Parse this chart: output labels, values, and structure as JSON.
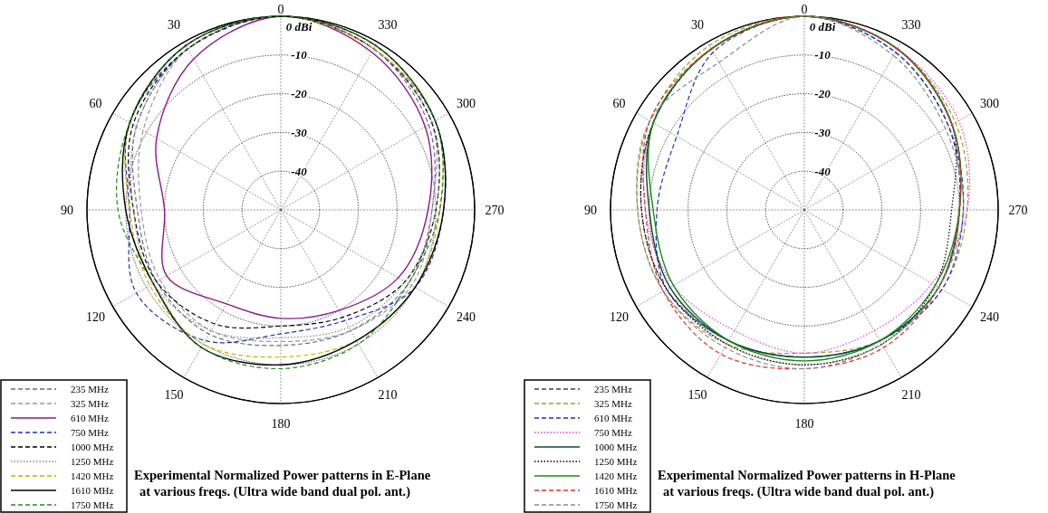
{
  "chart_data": [
    {
      "type": "radar",
      "annotations": [
        "Experimental Normalized Power patterns in E-Plane",
        "at various freqs. (Ultra wide band dual pol. ant.)"
      ],
      "categories": [
        "0",
        "330",
        "300",
        "270",
        "240",
        "210",
        "180",
        "150",
        "120",
        "90",
        "60",
        "30"
      ],
      "ylim": [
        -50,
        0
      ],
      "yticks": [
        {
          "value": 0,
          "label": "0 dBi"
        },
        {
          "value": -10,
          "label": "-10"
        },
        {
          "value": -20,
          "label": "-20"
        },
        {
          "value": -30,
          "label": "-30"
        },
        {
          "value": -40,
          "label": "-40"
        }
      ],
      "grid": true,
      "legend": "bottom left",
      "series": [
        {
          "name": "235 MHz",
          "color": "#6a6a8a",
          "line_style": "dashed",
          "values": [
            0,
            -2,
            -6,
            -11,
            -12,
            -14,
            -15,
            -13,
            -13,
            -13,
            -7,
            -2
          ]
        },
        {
          "name": "325 MHz",
          "color": "#999999",
          "line_style": "dashed",
          "values": [
            0,
            -2,
            -5,
            -11,
            -11,
            -14,
            -16,
            -14,
            -14,
            -14,
            -9,
            -2
          ]
        },
        {
          "name": "610 MHz",
          "color": "#8b1a8b",
          "line_style": "solid",
          "values": [
            0,
            -3,
            -7,
            -12,
            -15,
            -20,
            -22,
            -22,
            -16,
            -20,
            -13,
            -5
          ]
        },
        {
          "name": "750 MHz",
          "color": "#2030c0",
          "line_style": "dashed",
          "values": [
            0,
            -2,
            -4,
            -8,
            -10,
            -17,
            -18,
            -11,
            -7,
            -11,
            -5,
            -2
          ]
        },
        {
          "name": "1000 MHz",
          "color": "#000000",
          "line_style": "dashed",
          "values": [
            0,
            -2,
            -5,
            -10,
            -13,
            -18,
            -20,
            -16,
            -13,
            -12,
            -6,
            -2
          ]
        },
        {
          "name": "1250 MHz",
          "color": "#888888",
          "line_style": "dotted",
          "values": [
            0,
            -2,
            -5,
            -10,
            -13,
            -15,
            -17,
            -14,
            -12,
            -12,
            -7,
            -2
          ]
        },
        {
          "name": "1420 MHz",
          "color": "#c8b400",
          "line_style": "dashed",
          "values": [
            0,
            -2,
            -4,
            -9,
            -10,
            -11,
            -12,
            -10,
            -11,
            -11,
            -5,
            -1
          ]
        },
        {
          "name": "1610 MHz",
          "color": "#000000",
          "line_style": "solid",
          "values": [
            0,
            -1,
            -4,
            -8,
            -10,
            -11,
            -10,
            -9,
            -12,
            -10,
            -5,
            -1
          ]
        },
        {
          "name": "1750 MHz",
          "color": "#228b22",
          "line_style": "dashed",
          "values": [
            0,
            -1,
            -4,
            -9,
            -12,
            -10,
            -9,
            -9,
            -12,
            -8,
            -5,
            -1
          ]
        }
      ]
    },
    {
      "type": "radar",
      "annotations": [
        "Experimental Normalized Power patterns in H-Plane",
        "at various freqs. (Ultra wide band dual pol. ant.)"
      ],
      "categories": [
        "0",
        "330",
        "300",
        "270",
        "240",
        "210",
        "180",
        "150",
        "120",
        "90",
        "60",
        "30"
      ],
      "ylim": [
        -50,
        0
      ],
      "yticks": [
        {
          "value": 0,
          "label": "0 dBi"
        },
        {
          "value": -10,
          "label": "-10"
        },
        {
          "value": -20,
          "label": "-20"
        },
        {
          "value": -30,
          "label": "-30"
        },
        {
          "value": -40,
          "label": "-40"
        }
      ],
      "grid": true,
      "legend": "bottom left",
      "series": [
        {
          "name": "235 MHz",
          "color": "#404060",
          "line_style": "dashed",
          "values": [
            0,
            -3,
            -7,
            -10,
            -10,
            -11,
            -12,
            -11,
            -9,
            -8,
            -5,
            -2
          ]
        },
        {
          "name": "325 MHz",
          "color": "#a0a020",
          "line_style": "dashed",
          "values": [
            0,
            -2,
            -5,
            -8,
            -9,
            -11,
            -13,
            -10,
            -8,
            -7,
            -4,
            -1
          ]
        },
        {
          "name": "610 MHz",
          "color": "#2030c0",
          "line_style": "dashed",
          "values": [
            0,
            -3,
            -7,
            -9,
            -9,
            -11,
            -12,
            -11,
            -9,
            -12,
            -12,
            -3
          ]
        },
        {
          "name": "750 MHz",
          "color": "#e040e0",
          "line_style": "dotted",
          "values": [
            0,
            -2,
            -4,
            -8,
            -12,
            -14,
            -13,
            -14,
            -11,
            -9,
            -5,
            -2
          ]
        },
        {
          "name": "1000 MHz",
          "color": "#0a4a2a",
          "line_style": "solid",
          "values": [
            0,
            -2,
            -6,
            -10,
            -10,
            -11,
            -12,
            -11,
            -10,
            -10,
            -5,
            -2
          ]
        },
        {
          "name": "1250 MHz",
          "color": "#000000",
          "line_style": "dotted",
          "values": [
            0,
            -2,
            -6,
            -12,
            -11,
            -10,
            -10,
            -10,
            -9,
            -8,
            -5,
            -2
          ]
        },
        {
          "name": "1420 MHz",
          "color": "#1a8a1a",
          "line_style": "solid",
          "values": [
            0,
            -2,
            -6,
            -10,
            -11,
            -11,
            -11,
            -11,
            -11,
            -11,
            -5,
            -2
          ]
        },
        {
          "name": "1610 MHz",
          "color": "#e03030",
          "line_style": "dashed",
          "values": [
            0,
            -2,
            -6,
            -10,
            -10,
            -9,
            -9,
            -7,
            -8,
            -9,
            -4,
            -2
          ]
        },
        {
          "name": "1750 MHz",
          "color": "#8a8a8a",
          "line_style": "dashed",
          "values": [
            0,
            -4,
            -8,
            -9,
            -10,
            -10,
            -9,
            -9,
            -8,
            -7,
            -4,
            -6
          ]
        }
      ]
    }
  ]
}
